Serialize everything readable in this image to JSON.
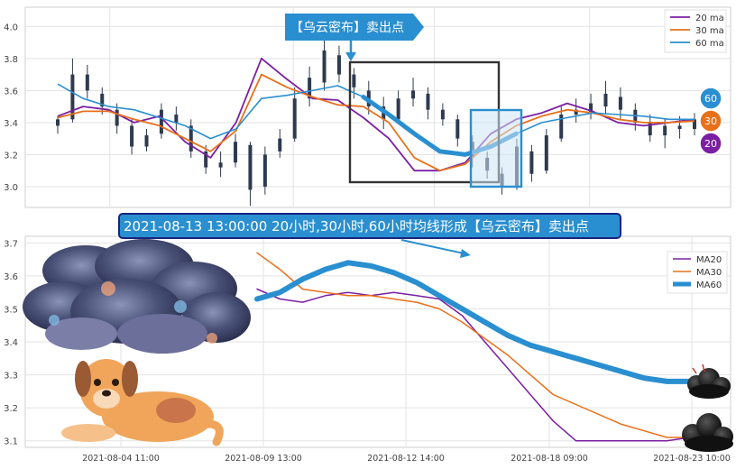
{
  "annotations": {
    "top_callout": "【乌云密布】卖出点",
    "banner": "2021-08-13 13:00:00 20小时,30小时,60小时均线形成【乌云密布】卖出点",
    "ma_badges": [
      "60",
      "30",
      "20"
    ]
  },
  "colors": {
    "ma20": "#7b1fa2",
    "ma30": "#e8701a",
    "ma60": "#2a8fd0",
    "candle": "#2e3a4f",
    "callout_bg": "#2a8fd0",
    "banner_bg": "#2a8fd0",
    "banner_border": "#1a237e"
  },
  "chart_data": [
    {
      "type": "line",
      "panel": "top",
      "overlay": "candlestick",
      "ylim": [
        2.87,
        4.12
      ],
      "yticks": [
        "3.0",
        "3.2",
        "3.4",
        "3.6",
        "3.8",
        "4.0"
      ],
      "legend": [
        "20 ma",
        "30 ma",
        "60 ma"
      ],
      "legend_position": "top-right",
      "grid": true,
      "series": [
        {
          "name": "20 ma",
          "x": [
            0,
            4,
            8,
            12,
            16,
            20,
            24,
            28,
            32,
            36,
            40,
            44,
            48,
            52,
            56,
            60,
            64,
            68,
            72,
            76,
            80,
            84,
            88,
            92,
            96,
            100
          ],
          "values": [
            3.44,
            3.5,
            3.48,
            3.4,
            3.44,
            3.28,
            3.18,
            3.4,
            3.8,
            3.67,
            3.55,
            3.54,
            3.43,
            3.3,
            3.1,
            3.1,
            3.15,
            3.33,
            3.42,
            3.46,
            3.52,
            3.47,
            3.4,
            3.38,
            3.4,
            3.42
          ]
        },
        {
          "name": "30 ma",
          "x": [
            0,
            4,
            8,
            12,
            16,
            20,
            24,
            28,
            32,
            36,
            40,
            44,
            48,
            52,
            56,
            60,
            64,
            68,
            72,
            76,
            80,
            84,
            88,
            92,
            96,
            100
          ],
          "values": [
            3.43,
            3.47,
            3.47,
            3.42,
            3.38,
            3.3,
            3.22,
            3.35,
            3.7,
            3.62,
            3.56,
            3.51,
            3.5,
            3.4,
            3.18,
            3.1,
            3.14,
            3.28,
            3.38,
            3.44,
            3.48,
            3.46,
            3.42,
            3.4,
            3.4,
            3.41
          ]
        },
        {
          "name": "60 ma",
          "x": [
            0,
            4,
            8,
            12,
            16,
            20,
            24,
            28,
            32,
            36,
            40,
            44,
            48,
            52,
            56,
            60,
            64,
            68,
            72,
            76,
            80,
            84,
            88,
            92,
            96,
            100
          ],
          "values": [
            3.64,
            3.55,
            3.5,
            3.48,
            3.43,
            3.38,
            3.3,
            3.36,
            3.55,
            3.57,
            3.6,
            3.63,
            3.56,
            3.45,
            3.33,
            3.22,
            3.2,
            3.25,
            3.33,
            3.4,
            3.43,
            3.46,
            3.45,
            3.44,
            3.42,
            3.42
          ]
        }
      ],
      "candles": [
        [
          3.38,
          3.42,
          3.33,
          3.44
        ],
        [
          3.42,
          3.7,
          3.4,
          3.8
        ],
        [
          3.7,
          3.6,
          3.55,
          3.76
        ],
        [
          3.58,
          3.5,
          3.45,
          3.62
        ],
        [
          3.48,
          3.38,
          3.33,
          3.52
        ],
        [
          3.38,
          3.25,
          3.2,
          3.42
        ],
        [
          3.25,
          3.32,
          3.22,
          3.36
        ],
        [
          3.33,
          3.48,
          3.3,
          3.52
        ],
        [
          3.45,
          3.4,
          3.35,
          3.5
        ],
        [
          3.38,
          3.22,
          3.18,
          3.42
        ],
        [
          3.22,
          3.12,
          3.08,
          3.26
        ],
        [
          3.12,
          3.15,
          3.06,
          3.22
        ],
        [
          3.15,
          3.28,
          3.12,
          3.33
        ],
        [
          3.26,
          2.98,
          2.88,
          3.28
        ],
        [
          3.0,
          3.2,
          2.95,
          3.25
        ],
        [
          3.22,
          3.3,
          3.18,
          3.36
        ],
        [
          3.3,
          3.55,
          3.28,
          3.62
        ],
        [
          3.55,
          3.68,
          3.5,
          3.75
        ],
        [
          3.65,
          3.85,
          3.6,
          4.05
        ],
        [
          3.82,
          3.7,
          3.65,
          3.88
        ],
        [
          3.7,
          3.62,
          3.55,
          3.74
        ],
        [
          3.6,
          3.5,
          3.45,
          3.66
        ],
        [
          3.5,
          3.42,
          3.36,
          3.56
        ],
        [
          3.42,
          3.55,
          3.4,
          3.6
        ],
        [
          3.55,
          3.6,
          3.5,
          3.68
        ],
        [
          3.58,
          3.48,
          3.42,
          3.62
        ],
        [
          3.48,
          3.42,
          3.38,
          3.52
        ],
        [
          3.42,
          3.3,
          3.25,
          3.45
        ],
        [
          3.28,
          3.18,
          3.12,
          3.32
        ],
        [
          3.18,
          3.1,
          3.05,
          3.22
        ],
        [
          3.08,
          3.0,
          2.95,
          3.12
        ],
        [
          3.0,
          3.25,
          2.98,
          3.3
        ],
        [
          3.22,
          3.08,
          3.03,
          3.26
        ],
        [
          3.1,
          3.32,
          3.08,
          3.36
        ],
        [
          3.3,
          3.45,
          3.28,
          3.5
        ],
        [
          3.45,
          3.48,
          3.4,
          3.55
        ],
        [
          3.46,
          3.52,
          3.42,
          3.58
        ],
        [
          3.5,
          3.58,
          3.45,
          3.66
        ],
        [
          3.56,
          3.48,
          3.42,
          3.62
        ],
        [
          3.48,
          3.4,
          3.35,
          3.52
        ],
        [
          3.4,
          3.32,
          3.28,
          3.45
        ],
        [
          3.32,
          3.38,
          3.24,
          3.42
        ],
        [
          3.38,
          3.36,
          3.3,
          3.44
        ],
        [
          3.36,
          3.42,
          3.32,
          3.46
        ]
      ]
    },
    {
      "type": "line",
      "panel": "bottom",
      "ylim": [
        3.08,
        3.72
      ],
      "yticks": [
        "3.1",
        "3.2",
        "3.3",
        "3.4",
        "3.5",
        "3.6",
        "3.7"
      ],
      "xticks": [
        "2021-08-04 11:00",
        "2021-08-09 13:00",
        "2021-08-12 14:00",
        "2021-08-18 09:00",
        "2021-08-23 10:00"
      ],
      "legend": [
        "MA20",
        "MA30",
        "MA60"
      ],
      "legend_position": "top-right",
      "grid": true,
      "series": [
        {
          "name": "MA20",
          "x": [
            0,
            1,
            2,
            3,
            4,
            5,
            6,
            7,
            8,
            9,
            10,
            11,
            12,
            13,
            14,
            15,
            16,
            17,
            18,
            19,
            20
          ],
          "values": [
            3.56,
            3.53,
            3.52,
            3.54,
            3.55,
            3.54,
            3.55,
            3.54,
            3.53,
            3.48,
            3.4,
            3.32,
            3.24,
            3.16,
            3.1,
            3.1,
            3.1,
            3.1,
            3.1,
            3.11,
            3.11
          ]
        },
        {
          "name": "MA30",
          "x": [
            0,
            1,
            2,
            3,
            4,
            5,
            6,
            7,
            8,
            9,
            10,
            11,
            12,
            13,
            14,
            15,
            16,
            17,
            18,
            19,
            20
          ],
          "values": [
            3.67,
            3.62,
            3.56,
            3.55,
            3.54,
            3.54,
            3.53,
            3.52,
            3.5,
            3.46,
            3.41,
            3.36,
            3.3,
            3.24,
            3.21,
            3.18,
            3.15,
            3.13,
            3.11,
            3.11,
            3.11
          ]
        },
        {
          "name": "MA60",
          "x": [
            0,
            1,
            2,
            3,
            4,
            5,
            6,
            7,
            8,
            9,
            10,
            11,
            12,
            13,
            14,
            15,
            16,
            17,
            18,
            19,
            20
          ],
          "values": [
            3.53,
            3.55,
            3.59,
            3.62,
            3.64,
            3.63,
            3.61,
            3.58,
            3.54,
            3.5,
            3.46,
            3.42,
            3.39,
            3.37,
            3.35,
            3.33,
            3.31,
            3.29,
            3.28,
            3.28,
            3.28
          ]
        }
      ]
    }
  ]
}
